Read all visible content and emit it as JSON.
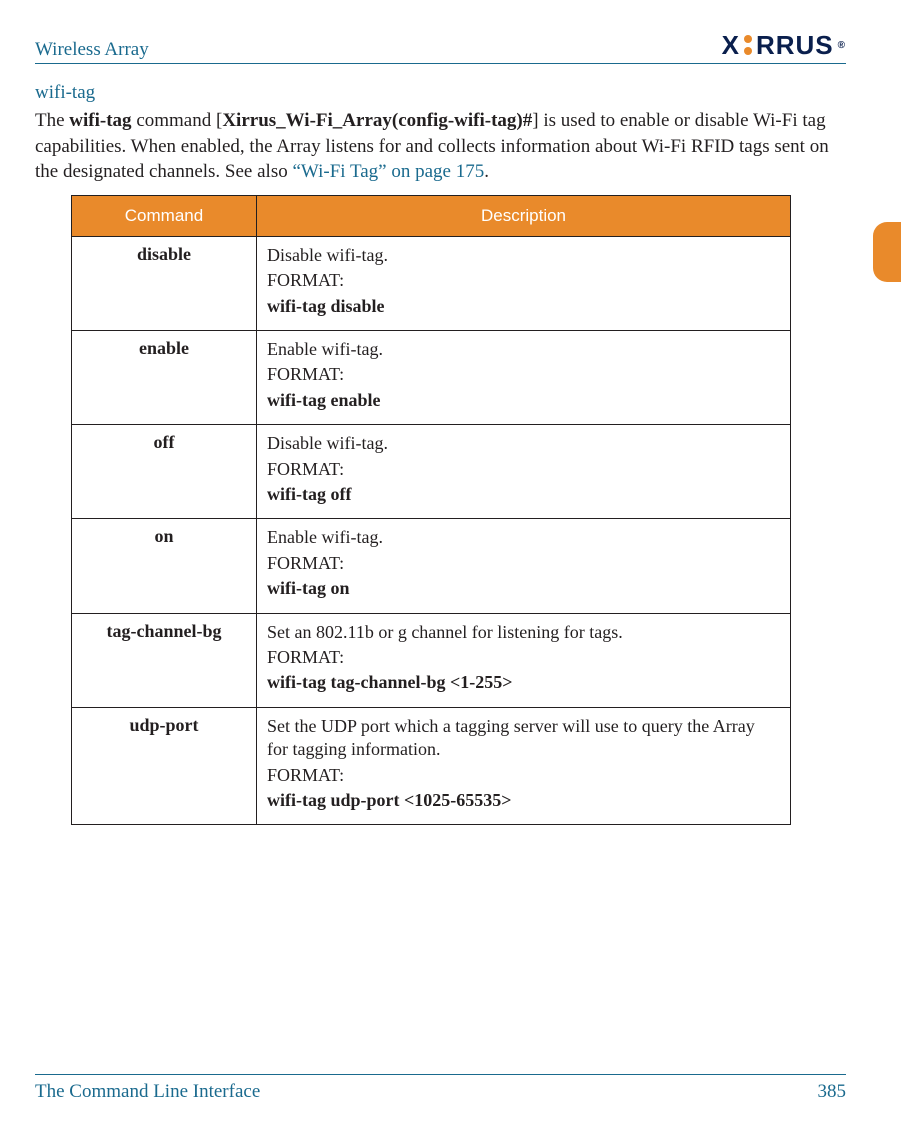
{
  "header": {
    "title": "Wireless Array",
    "logo_text_1": "X",
    "logo_text_2": "RRUS",
    "logo_tm": "®"
  },
  "section": {
    "heading": "wifi-tag",
    "intro_prefix": "The ",
    "intro_bold1": "wifi-tag",
    "intro_mid1": " command [",
    "intro_bold2": "Xirrus_Wi-Fi_Array(config-wifi-tag)#",
    "intro_mid2": "] is used to enable or disable Wi-Fi tag capabilities. When enabled, the Array listens for and collects information about Wi-Fi RFID tags sent on the designated channels. See also ",
    "intro_link": "“Wi-Fi Tag” on page 175",
    "intro_end": "."
  },
  "table": {
    "headers": {
      "command": "Command",
      "description": "Description"
    },
    "rows": [
      {
        "command": "disable",
        "desc": "Disable wifi-tag.",
        "format_label": "FORMAT:",
        "format": "wifi-tag disable"
      },
      {
        "command": "enable",
        "desc": "Enable wifi-tag.",
        "format_label": "FORMAT:",
        "format": "wifi-tag enable"
      },
      {
        "command": "off",
        "desc": "Disable wifi-tag.",
        "format_label": "FORMAT:",
        "format": "wifi-tag off"
      },
      {
        "command": "on",
        "desc": "Enable wifi-tag.",
        "format_label": "FORMAT:",
        "format": "wifi-tag on"
      },
      {
        "command": "tag-channel-bg",
        "desc": "Set an 802.11b or g channel for listening for tags.",
        "format_label": "FORMAT:",
        "format": "wifi-tag tag-channel-bg <1-255>"
      },
      {
        "command": "udp-port",
        "desc": "Set the UDP port which a tagging server will use to query the Array for tagging information.",
        "format_label": "FORMAT:",
        "format": "wifi-tag udp-port <1025-65535>"
      }
    ]
  },
  "footer": {
    "chapter": "The Command Line Interface",
    "page": "385"
  },
  "colors": {
    "accent_orange": "#e98a2b",
    "accent_blue": "#1a6a8e",
    "text": "#231f20",
    "logo_navy": "#0a1f4d"
  }
}
